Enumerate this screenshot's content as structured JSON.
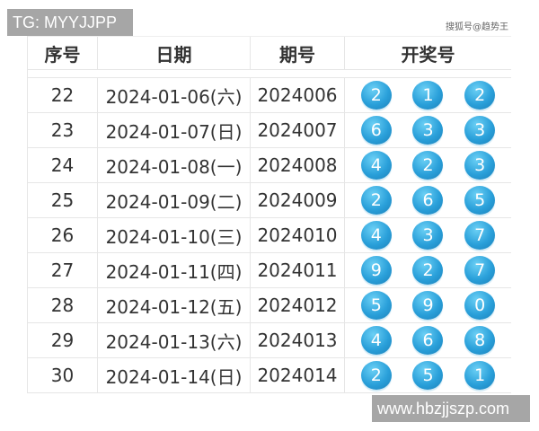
{
  "watermark_top": "TG: MYYJJPP",
  "watermark_bottom": "www.hbzjjszp.com",
  "source_mark": "搜狐号@趋势王",
  "headers": [
    "序号",
    "日期",
    "期号",
    "开奖号"
  ],
  "rows": [
    {
      "no": "22",
      "date": "2024-01-06(六)",
      "issue": "2024006",
      "balls": [
        "2",
        "1",
        "2"
      ]
    },
    {
      "no": "23",
      "date": "2024-01-07(日)",
      "issue": "2024007",
      "balls": [
        "6",
        "3",
        "3"
      ]
    },
    {
      "no": "24",
      "date": "2024-01-08(一)",
      "issue": "2024008",
      "balls": [
        "4",
        "2",
        "3"
      ]
    },
    {
      "no": "25",
      "date": "2024-01-09(二)",
      "issue": "2024009",
      "balls": [
        "2",
        "6",
        "5"
      ]
    },
    {
      "no": "26",
      "date": "2024-01-10(三)",
      "issue": "2024010",
      "balls": [
        "4",
        "3",
        "7"
      ]
    },
    {
      "no": "27",
      "date": "2024-01-11(四)",
      "issue": "2024011",
      "balls": [
        "9",
        "2",
        "7"
      ]
    },
    {
      "no": "28",
      "date": "2024-01-12(五)",
      "issue": "2024012",
      "balls": [
        "5",
        "9",
        "0"
      ]
    },
    {
      "no": "29",
      "date": "2024-01-13(六)",
      "issue": "2024013",
      "balls": [
        "4",
        "6",
        "8"
      ]
    },
    {
      "no": "30",
      "date": "2024-01-14(日)",
      "issue": "2024014",
      "balls": [
        "2",
        "5",
        "1"
      ]
    }
  ],
  "colors": {
    "ball": "#2aa0da",
    "watermark_bg": "#a6a6a6"
  }
}
